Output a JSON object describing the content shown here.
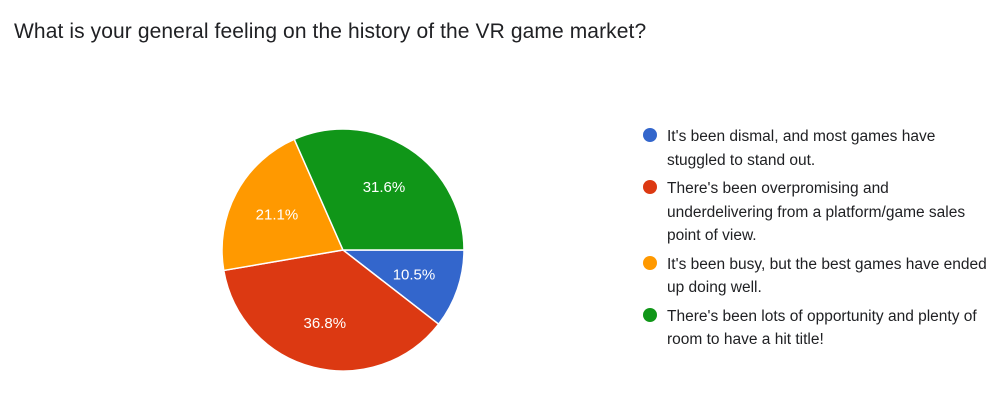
{
  "question": {
    "title": "What is your general feeling on the history of the VR game market?"
  },
  "chart_data": {
    "type": "pie",
    "slices": [
      {
        "label": "It's been dismal, and most games have stuggled to stand out.",
        "value": 10.5,
        "display": "10.5%",
        "color": "#3366cc"
      },
      {
        "label": "There's been overpromising and underdelivering from a platform/game sales point of view.",
        "value": 36.8,
        "display": "36.8%",
        "color": "#dc3912"
      },
      {
        "label": "It's been busy, but the best games have ended up doing well.",
        "value": 21.1,
        "display": "21.1%",
        "color": "#ff9900"
      },
      {
        "label": "There's been lots of opportunity and plenty of room to have a hit title!",
        "value": 31.6,
        "display": "31.6%",
        "color": "#109618"
      }
    ],
    "legend_position": "right"
  }
}
